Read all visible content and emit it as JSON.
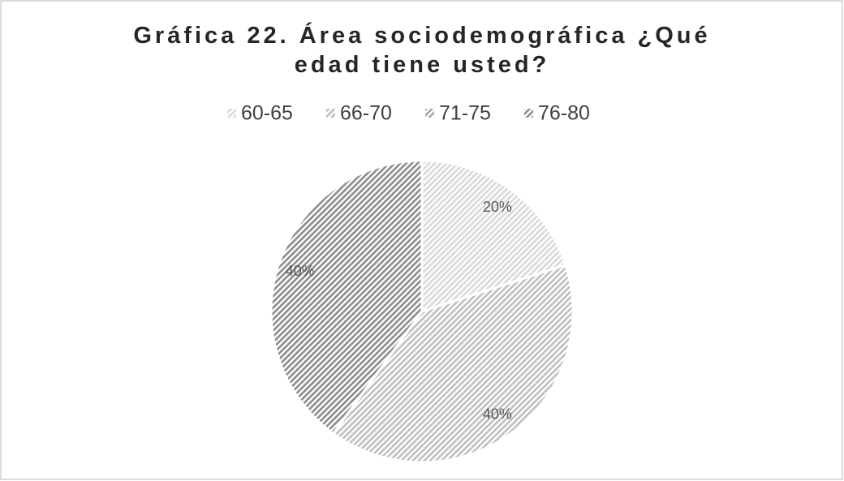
{
  "chart_data": {
    "type": "pie",
    "title": "Gráfica 22. Área sociodemográfica ¿Qué edad tiene usted?",
    "categories": [
      "60-65",
      "66-70",
      "71-75",
      "76-80"
    ],
    "values": [
      20,
      40,
      0,
      40
    ],
    "value_labels": [
      "20%",
      "40%",
      null,
      "40%"
    ],
    "colors": [
      "#d9d9d9",
      "#bfbfbf",
      "#a6a6a6",
      "#8c8c8c"
    ],
    "legend": "top"
  }
}
